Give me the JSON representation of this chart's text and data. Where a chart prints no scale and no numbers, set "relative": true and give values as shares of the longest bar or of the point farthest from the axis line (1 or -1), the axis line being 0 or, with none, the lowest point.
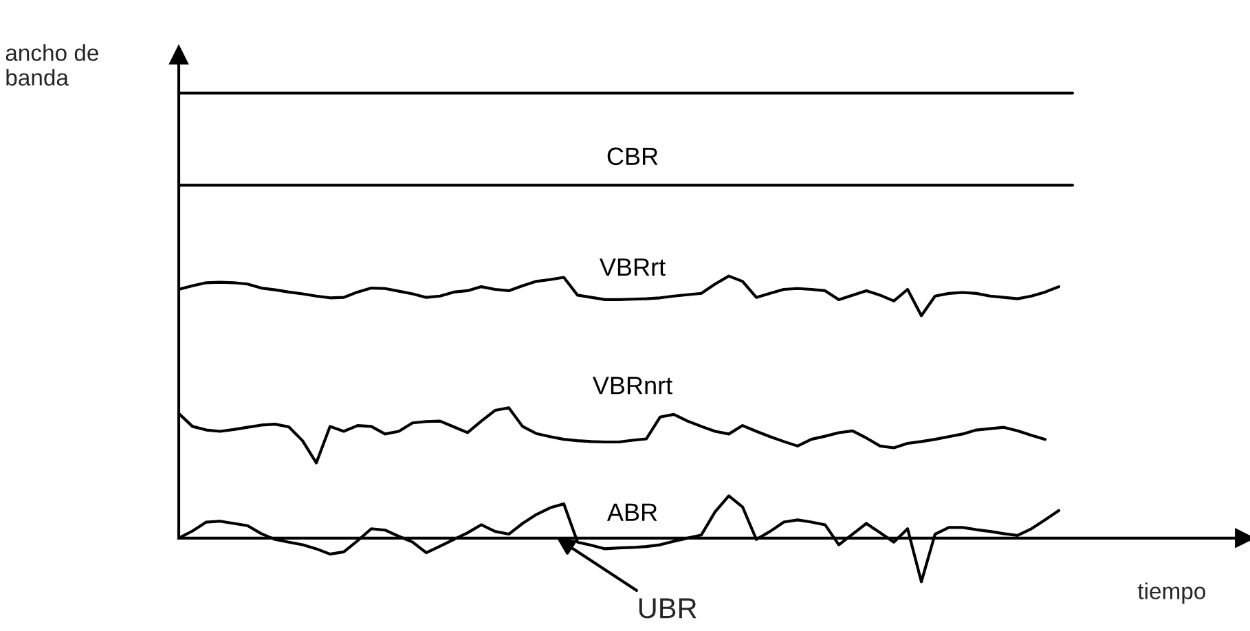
{
  "chart_data": {
    "type": "line",
    "relative": true,
    "ylabel": "ancho de\nbanda",
    "xlabel": "tiempo",
    "legend": false,
    "marker": "none",
    "line_style": "solid",
    "annotations": [
      {
        "text": "UBR",
        "y": 0
      }
    ],
    "categories": [
      null,
      null,
      null,
      null,
      null,
      null,
      null,
      null,
      null,
      null,
      null,
      null,
      null,
      null,
      null,
      null,
      null,
      null,
      null,
      null,
      null,
      null,
      null,
      null,
      null,
      null,
      null,
      null,
      null,
      null,
      null,
      null,
      null,
      null,
      null,
      null,
      null,
      null,
      null,
      null,
      null,
      null,
      null,
      null,
      null,
      null,
      null,
      null,
      null,
      null,
      null,
      null,
      null,
      null,
      null,
      null,
      null,
      null,
      null,
      null,
      null,
      null,
      null,
      null,
      null,
      null
    ],
    "series": [
      {
        "color": "#000000",
        "values": [
          1,
          1,
          1,
          1,
          1,
          1,
          1,
          1,
          1,
          1,
          1,
          1,
          1,
          1,
          1,
          1,
          1,
          1,
          1,
          1,
          1,
          1,
          1,
          1,
          1,
          1,
          1,
          1,
          1,
          1,
          1,
          1,
          1,
          1,
          1,
          1,
          1,
          1,
          1,
          1,
          1,
          1,
          1,
          1,
          1,
          1,
          1,
          1,
          1,
          1,
          1,
          1,
          1,
          1,
          1,
          1,
          1,
          1,
          1,
          1,
          1,
          1,
          1,
          1,
          1,
          1
        ]
      },
      {
        "name": "CBR",
        "color": "#000000",
        "values": [
          0.793,
          0.793,
          0.793,
          0.793,
          0.793,
          0.793,
          0.793,
          0.793,
          0.793,
          0.793,
          0.793,
          0.793,
          0.793,
          0.793,
          0.793,
          0.793,
          0.793,
          0.793,
          0.793,
          0.793,
          0.793,
          0.793,
          0.793,
          0.793,
          0.793,
          0.793,
          0.793,
          0.793,
          0.793,
          0.793,
          0.793,
          0.793,
          0.793,
          0.793,
          0.793,
          0.793,
          0.793,
          0.793,
          0.793,
          0.793,
          0.793,
          0.793,
          0.793,
          0.793,
          0.793,
          0.793,
          0.793,
          0.793,
          0.793,
          0.793,
          0.793,
          0.793,
          0.793,
          0.793,
          0.793,
          0.793,
          0.793,
          0.793,
          0.793,
          0.793,
          0.793,
          0.793,
          0.793,
          0.793,
          0.793,
          0.793
        ]
      },
      {
        "name": "VBRrt",
        "color": "#000000",
        "values": [
          0.559,
          0.567,
          0.574,
          0.575,
          0.574,
          0.571,
          0.562,
          0.558,
          0.553,
          0.549,
          0.544,
          0.54,
          0.541,
          0.553,
          0.562,
          0.561,
          0.555,
          0.549,
          0.541,
          0.544,
          0.553,
          0.556,
          0.565,
          0.559,
          0.556,
          0.567,
          0.577,
          0.581,
          0.586,
          0.546,
          0.541,
          0.536,
          0.536,
          0.537,
          0.538,
          0.54,
          0.544,
          0.547,
          0.55,
          0.571,
          0.589,
          0.577,
          0.541,
          0.55,
          0.559,
          0.561,
          0.559,
          0.556,
          0.536,
          0.546,
          0.556,
          0.546,
          0.533,
          0.559,
          0.5,
          0.544,
          0.55,
          0.552,
          0.55,
          0.544,
          0.541,
          0.538,
          0.544,
          0.553,
          0.565,
          null
        ]
      },
      {
        "name": "VBRnrt",
        "color": "#000000",
        "values": [
          0.28,
          0.251,
          0.243,
          0.24,
          0.244,
          0.249,
          0.254,
          0.256,
          0.25,
          0.219,
          0.169,
          0.251,
          0.24,
          0.253,
          0.251,
          0.234,
          0.24,
          0.259,
          0.262,
          0.263,
          0.25,
          0.237,
          0.263,
          0.287,
          0.293,
          0.251,
          0.235,
          0.228,
          0.222,
          0.219,
          0.217,
          0.216,
          0.216,
          0.22,
          0.223,
          0.272,
          0.278,
          0.263,
          0.251,
          0.24,
          0.234,
          0.253,
          0.24,
          0.228,
          0.217,
          0.207,
          0.222,
          0.229,
          0.237,
          0.241,
          0.225,
          0.207,
          0.203,
          0.213,
          0.217,
          0.222,
          0.228,
          0.234,
          0.243,
          0.246,
          0.249,
          0.241,
          0.231,
          0.222,
          null,
          null
        ]
      },
      {
        "name": "ABR",
        "color": "#000000",
        "values": [
          0,
          0.016,
          0.036,
          0.038,
          0.033,
          0.028,
          0.01,
          -0.003,
          -0.009,
          -0.015,
          -0.024,
          -0.036,
          -0.031,
          -0.006,
          0.021,
          0.018,
          0.004,
          -0.009,
          -0.033,
          -0.018,
          -0.003,
          0.012,
          0.03,
          0.015,
          0.009,
          0.033,
          0.053,
          0.068,
          0.077,
          -0.009,
          -0.016,
          -0.024,
          -0.022,
          -0.021,
          -0.019,
          -0.015,
          -0.007,
          0,
          0.007,
          0.059,
          0.095,
          0.07,
          -0.003,
          0.015,
          0.036,
          0.041,
          0.036,
          0.03,
          -0.015,
          0.009,
          0.033,
          0.012,
          -0.009,
          0.021,
          -0.098,
          0.009,
          0.024,
          0.024,
          0.019,
          0.015,
          0.01,
          0.006,
          0.021,
          0.041,
          0.062,
          null
        ]
      }
    ]
  }
}
